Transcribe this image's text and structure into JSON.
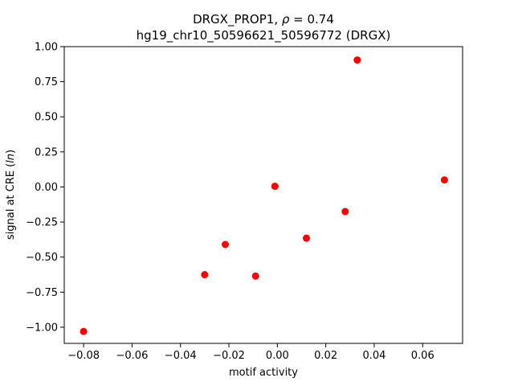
{
  "chart_data": {
    "type": "scatter",
    "title_line1_prefix": "DRGX_PROP1, ",
    "title_line1_rho": "ρ",
    "title_line1_suffix": " = 0.74",
    "title_line2": "hg19_chr10_50596621_50596772 (DRGX)",
    "xlabel": "motif activity",
    "ylabel_prefix": "signal at CRE (",
    "ylabel_ln": "ln",
    "ylabel_suffix": ")",
    "xlim": [
      -0.088,
      0.0765
    ],
    "ylim": [
      -1.115,
      1.0
    ],
    "x_ticks": [
      -0.08,
      -0.06,
      -0.04,
      -0.02,
      0.0,
      0.02,
      0.04,
      0.06
    ],
    "x_tick_labels": [
      "−0.08",
      "−0.06",
      "−0.04",
      "−0.02",
      "0.00",
      "0.02",
      "0.04",
      "0.06"
    ],
    "y_ticks": [
      -1.0,
      -0.75,
      -0.5,
      -0.25,
      0.0,
      0.25,
      0.5,
      0.75,
      1.0
    ],
    "y_tick_labels": [
      "−1.00",
      "−0.75",
      "−0.50",
      "−0.25",
      "0.00",
      "0.25",
      "0.50",
      "0.75",
      "1.00"
    ],
    "grid": false,
    "marker_color": "#ff0000",
    "points": [
      {
        "x": -0.08,
        "y": -1.03
      },
      {
        "x": -0.03,
        "y": -0.625
      },
      {
        "x": -0.0215,
        "y": -0.41
      },
      {
        "x": -0.009,
        "y": -0.635
      },
      {
        "x": -0.001,
        "y": 0.005
      },
      {
        "x": 0.012,
        "y": -0.365
      },
      {
        "x": 0.028,
        "y": -0.175
      },
      {
        "x": 0.033,
        "y": 0.905
      },
      {
        "x": 0.069,
        "y": 0.05
      }
    ]
  }
}
